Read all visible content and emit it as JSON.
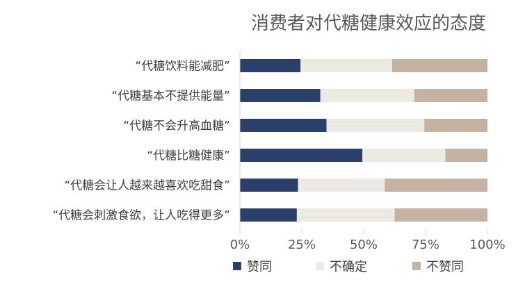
{
  "chart_data": {
    "type": "bar",
    "stacked": true,
    "orientation": "horizontal",
    "title": "消费者对代糖健康效应的态度",
    "categories": [
      "“代糖饮料能减肥”",
      "“代糖基本不提供能量”",
      "“代糖不会升高血糖”",
      "“代糖比糖健康”",
      "“代糖会让人越来越喜欢吃甜食”",
      "“代糖会刺激食欲，让人吃得更多”"
    ],
    "series": [
      {
        "name": "赞同",
        "color": "#2b3f6b",
        "values": [
          24.5,
          32.5,
          35,
          49.5,
          23.5,
          23
        ]
      },
      {
        "name": "不确定",
        "color": "#ede9e3",
        "values": [
          37,
          38,
          39.5,
          33.5,
          35,
          39.5
        ]
      },
      {
        "name": "不赞同",
        "color": "#c4b3a2",
        "values": [
          38.5,
          29.5,
          25.5,
          17,
          41.5,
          37.5
        ]
      }
    ],
    "x_ticks": [
      "0%",
      "25%",
      "50%",
      "75%",
      "100%"
    ],
    "xlim": [
      0,
      100
    ],
    "grid": false,
    "legend_position": "bottom"
  }
}
